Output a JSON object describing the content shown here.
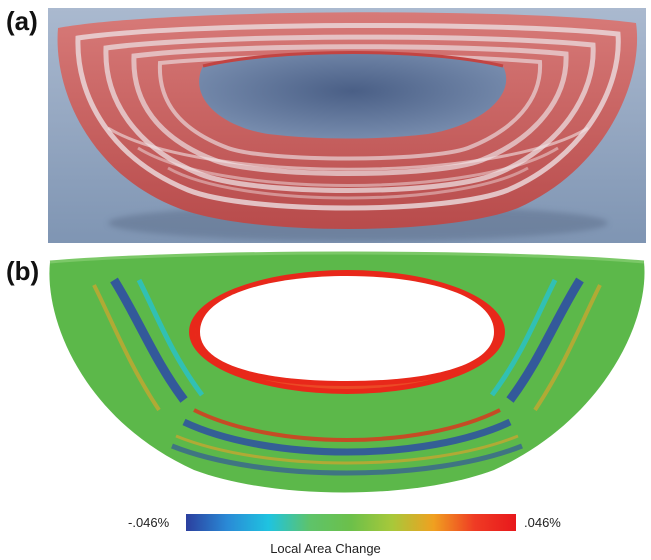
{
  "figure": {
    "panel_a_label": "(a)",
    "panel_b_label": "(b)",
    "colorbar": {
      "min_label": "-.046%",
      "max_label": ".046%",
      "title": "Local Area Change",
      "colors": [
        "#2b3f9e",
        "#2a8ad6",
        "#1fc3e0",
        "#5ec36a",
        "#6cc04a",
        "#a8c83a",
        "#f0a020",
        "#ef3b24",
        "#e8181c"
      ]
    },
    "photo_colors": {
      "background": "#9fb3cc",
      "strip": "#c9605f",
      "highlight": "#e8d7d9"
    },
    "sim_colors": {
      "base": "#5cb84a",
      "low": "#2b48a8",
      "high": "#e83a22"
    }
  }
}
